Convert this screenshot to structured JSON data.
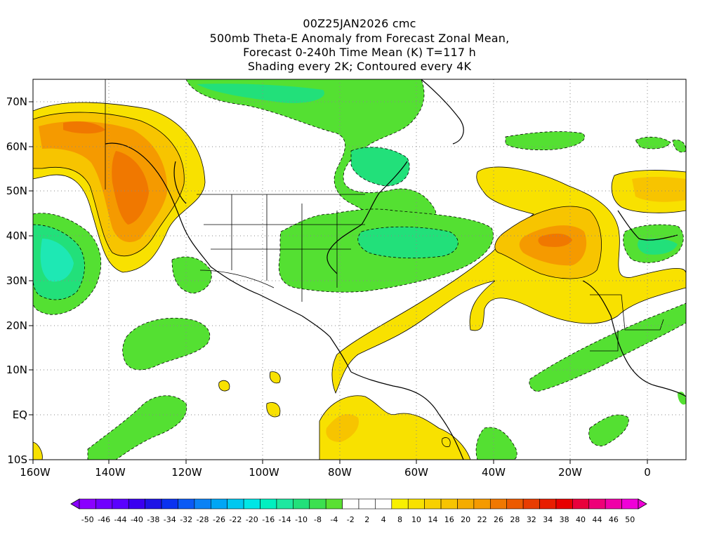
{
  "header": {
    "line1": "00Z25JAN2026 cmc",
    "line2": "500mb Theta-E Anomaly from Forecast Zonal Mean,",
    "line3": "Forecast 0-240h Time Mean (K) T=117 h",
    "line4": "Shading every 2K; Contoured every 4K"
  },
  "map": {
    "lon_range": [
      -160,
      10
    ],
    "lat_range": [
      -10,
      75
    ],
    "lon_ticks": [
      "160W",
      "140W",
      "120W",
      "100W",
      "80W",
      "60W",
      "40W",
      "20W",
      "0"
    ],
    "lat_ticks": [
      "70N",
      "60N",
      "50N",
      "40N",
      "30N",
      "20N",
      "10N",
      "EQ",
      "10S"
    ],
    "grid": "dotted",
    "colors": {
      "green_light": "#54e032",
      "green_mid": "#22e07a",
      "teal": "#1ee8b4",
      "yellow": "#f8e100",
      "gold": "#f7c400",
      "orange": "#f59a00",
      "orange_dark": "#f07800",
      "red_orange": "#e85a00"
    }
  },
  "colorbar": {
    "labels": [
      "-50",
      "-46",
      "-44",
      "-40",
      "-38",
      "-34",
      "-32",
      "-28",
      "-26",
      "-22",
      "-20",
      "-16",
      "-14",
      "-10",
      "-8",
      "-4",
      "-2",
      "2",
      "4",
      "8",
      "10",
      "14",
      "16",
      "20",
      "22",
      "26",
      "28",
      "32",
      "34",
      "38",
      "40",
      "44",
      "46",
      "50"
    ],
    "colors": [
      "#8a00ff",
      "#7000ff",
      "#5a00ff",
      "#3a00f0",
      "#1e14e6",
      "#0a32f0",
      "#0a5af5",
      "#0a82f5",
      "#00a6f5",
      "#00c8f0",
      "#00e6e6",
      "#00f0c0",
      "#1ee8a0",
      "#22e07a",
      "#3ce050",
      "#5ae032",
      "#ffffff",
      "#ffffff",
      "#ffffff",
      "#f8f000",
      "#f8e100",
      "#f8d000",
      "#f7c400",
      "#f5ac00",
      "#f59a00",
      "#f07800",
      "#ec5a00",
      "#e83c00",
      "#e81e00",
      "#e80000",
      "#e8003c",
      "#ee0078",
      "#f000a8",
      "#f000d8"
    ]
  }
}
